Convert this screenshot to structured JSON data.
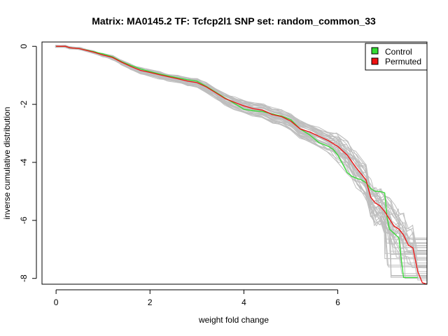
{
  "chart_data": {
    "type": "line",
    "title": "Matrix: MA0145.2 TF: Tcfcp2l1 SNP set: random_common_33",
    "xlabel": "weight fold change",
    "ylabel": "inverse cumulative distribution",
    "xlim": [
      -0.3,
      7.9
    ],
    "ylim": [
      -8.2,
      0.15
    ],
    "xticks": [
      0,
      2,
      4,
      6
    ],
    "xtick_labels": [
      "0",
      "2",
      "4",
      "6"
    ],
    "yticks": [
      0,
      -2,
      -4,
      -6,
      -8
    ],
    "ytick_labels": [
      "0",
      "-2",
      "-4",
      "-6",
      "-8"
    ],
    "grid": false,
    "legend": {
      "placement": "top-right",
      "entries": [
        "Control",
        "Permuted"
      ]
    },
    "colors": {
      "control": "#33dd33",
      "permuted": "#ee1111",
      "background_runs": "#bebebe"
    },
    "series": [
      {
        "name": "Control",
        "color": "#33dd33",
        "x": [
          0,
          0.2,
          0.3,
          0.5,
          0.8,
          1.0,
          1.2,
          1.4,
          1.6,
          1.8,
          2.0,
          2.2,
          2.4,
          2.6,
          2.8,
          3.0,
          3.2,
          3.4,
          3.6,
          3.8,
          4.0,
          4.2,
          4.4,
          4.6,
          4.8,
          5.0,
          5.2,
          5.4,
          5.6,
          5.7,
          5.8,
          5.9,
          6.0,
          6.1,
          6.2,
          6.3,
          6.4,
          6.5,
          6.6,
          6.7,
          6.8,
          6.9,
          7.0,
          7.05,
          7.1,
          7.2,
          7.3,
          7.35,
          7.4,
          7.5,
          7.6,
          7.7
        ],
        "y": [
          0,
          0,
          -0.05,
          -0.08,
          -0.18,
          -0.26,
          -0.36,
          -0.53,
          -0.66,
          -0.78,
          -0.87,
          -0.95,
          -1.02,
          -1.09,
          -1.15,
          -1.2,
          -1.38,
          -1.58,
          -1.78,
          -1.97,
          -2.17,
          -2.22,
          -2.25,
          -2.33,
          -2.4,
          -2.53,
          -2.85,
          -3.05,
          -3.32,
          -3.38,
          -3.45,
          -3.55,
          -3.75,
          -4.05,
          -4.35,
          -4.48,
          -4.55,
          -4.6,
          -4.7,
          -4.9,
          -5.0,
          -5.0,
          -5.05,
          -5.9,
          -6.3,
          -6.45,
          -6.6,
          -7.3,
          -7.97,
          -7.97,
          -7.97,
          -7.97
        ]
      },
      {
        "name": "Permuted",
        "color": "#ee1111",
        "x": [
          0,
          0.2,
          0.3,
          0.5,
          0.8,
          1.0,
          1.2,
          1.4,
          1.6,
          1.8,
          2.0,
          2.2,
          2.4,
          2.6,
          2.8,
          3.0,
          3.2,
          3.4,
          3.6,
          3.8,
          4.0,
          4.2,
          4.4,
          4.6,
          4.8,
          5.0,
          5.2,
          5.4,
          5.6,
          5.8,
          6.0,
          6.2,
          6.4,
          6.6,
          6.7,
          6.8,
          6.9,
          7.0,
          7.1,
          7.2,
          7.3,
          7.4,
          7.5,
          7.6,
          7.7,
          7.8,
          7.9
        ],
        "y": [
          0,
          0,
          -0.05,
          -0.08,
          -0.2,
          -0.3,
          -0.38,
          -0.55,
          -0.7,
          -0.83,
          -0.9,
          -0.98,
          -1.05,
          -1.12,
          -1.2,
          -1.25,
          -1.4,
          -1.6,
          -1.8,
          -1.93,
          -2.05,
          -2.15,
          -2.2,
          -2.35,
          -2.42,
          -2.58,
          -2.85,
          -2.95,
          -3.1,
          -3.25,
          -3.45,
          -3.75,
          -4.2,
          -4.6,
          -5.2,
          -5.4,
          -5.5,
          -5.7,
          -5.95,
          -6.2,
          -6.3,
          -6.5,
          -6.85,
          -6.95,
          -7.75,
          -8.15,
          -8.2
        ]
      }
    ]
  }
}
